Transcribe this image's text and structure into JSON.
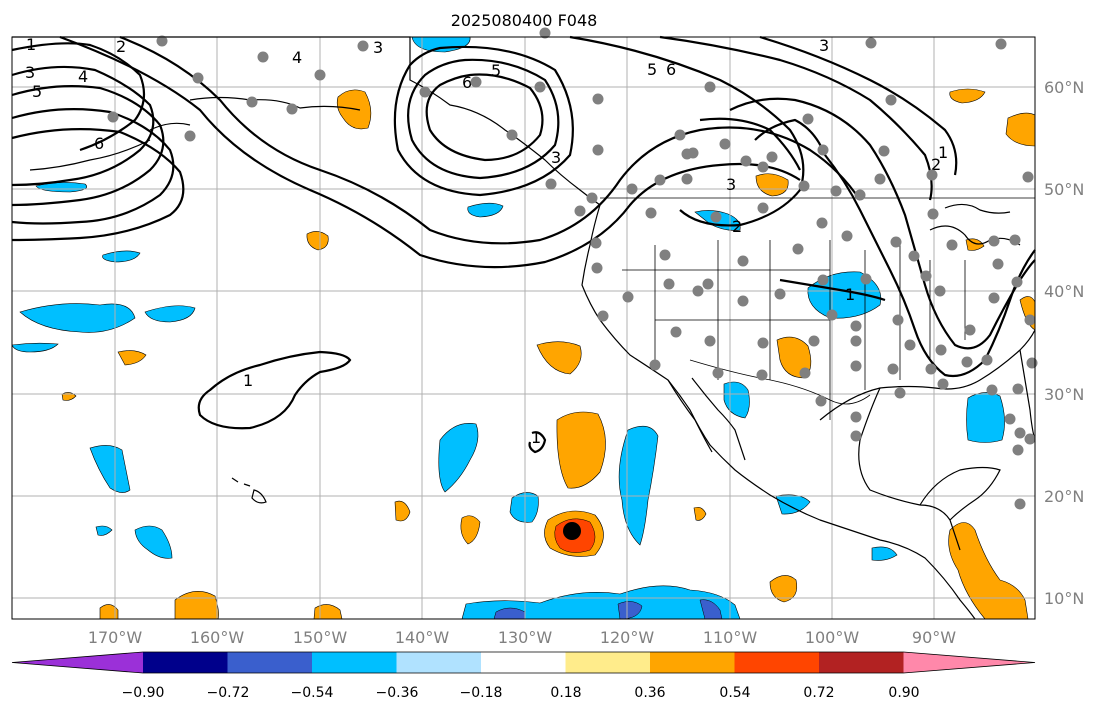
{
  "title": "2025080400 F048",
  "longitude_labels": [
    "170°W",
    "160°W",
    "150°W",
    "140°W",
    "130°W",
    "120°W",
    "110°W",
    "100°W",
    "90°W"
  ],
  "latitude_labels": [
    "60°N",
    "50°N",
    "40°N",
    "30°N",
    "20°N",
    "10°N"
  ],
  "colorbar": {
    "ticks": [
      "−0.90",
      "−0.72",
      "−0.54",
      "−0.36",
      "−0.18",
      "0.18",
      "0.36",
      "0.54",
      "0.72",
      "0.90"
    ],
    "colors": [
      "#9b30d8",
      "#00008b",
      "#3a5fcd",
      "#00bfff",
      "#b0e2ff",
      "#ffffff",
      "#ffec8b",
      "#ffa500",
      "#ff4500",
      "#b22222",
      "#ff88aa"
    ]
  },
  "contour_labels": [
    "1",
    "2",
    "3",
    "4",
    "5",
    "6",
    "3",
    "4",
    "5",
    "6",
    "3",
    "5",
    "6",
    "1",
    "2",
    "3",
    "2",
    "1",
    "1",
    "1",
    "3"
  ],
  "colors": {
    "station": "#808080",
    "center_marker": "#000000",
    "gridline": "#b0b0b0"
  }
}
